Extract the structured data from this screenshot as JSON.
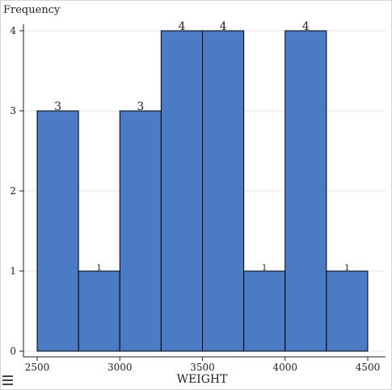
{
  "chart_data": {
    "type": "bar",
    "subtype": "histogram",
    "xlabel": "WEIGHT",
    "ylabel": "Frequency",
    "bins": [
      {
        "from": 2500,
        "to": 2750,
        "count": 3
      },
      {
        "from": 2750,
        "to": 3000,
        "count": 1
      },
      {
        "from": 3000,
        "to": 3250,
        "count": 3
      },
      {
        "from": 3250,
        "to": 3500,
        "count": 4
      },
      {
        "from": 3500,
        "to": 3750,
        "count": 4
      },
      {
        "from": 3750,
        "to": 4000,
        "count": 1
      },
      {
        "from": 4000,
        "to": 4250,
        "count": 4
      },
      {
        "from": 4250,
        "to": 4500,
        "count": 1
      }
    ],
    "xlim": [
      2500,
      4500
    ],
    "ylim": [
      0,
      4
    ],
    "x_ticks": [
      "2500",
      "3000",
      "3500",
      "4000",
      "4500"
    ],
    "y_ticks": [
      "0",
      "1",
      "2",
      "3",
      "4"
    ],
    "grid": true,
    "bar_color": "#4a7bc4",
    "bar_edge_color": "#000000"
  },
  "toolbar": {
    "menu_icon": "hamburger-menu-icon"
  }
}
